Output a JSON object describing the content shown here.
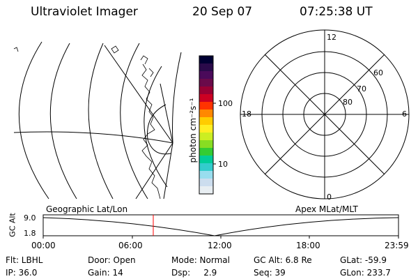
{
  "header": {
    "title": "Ultraviolet Imager",
    "date": "20 Sep 07",
    "time": "07:25:38 UT"
  },
  "colorbar": {
    "unit_label": "photon cm⁻²s⁻¹",
    "ticks": [
      "100",
      "10"
    ],
    "colors": [
      "#000033",
      "#2a0a4a",
      "#4a0a5a",
      "#6a0a4a",
      "#990033",
      "#cc0022",
      "#ff3300",
      "#ff8800",
      "#ffcc00",
      "#ffee22",
      "#ccee22",
      "#88dd22",
      "#33cc33",
      "#00cc99",
      "#33cccc",
      "#99ddee",
      "#ccddee",
      "#e8eef2"
    ]
  },
  "polar": {
    "mlt_labels": [
      "12",
      "18",
      "6",
      "0"
    ],
    "lat_labels": [
      "60",
      "70",
      "80"
    ]
  },
  "orbit": {
    "axis_label": "GC Alt",
    "y_ticks": [
      "9.0",
      "1.8"
    ],
    "left_title": "Geographic Lat/Lon",
    "right_title": "Apex MLat/MLT",
    "x_ticks": [
      "00:00",
      "06:00",
      "12:00",
      "18:00",
      "23:59"
    ],
    "marker_color": "#ff0000"
  },
  "status": {
    "row1": [
      "Flt: LBHL",
      "Door: Open",
      "Mode: Normal",
      "GC Alt: 6.8 Re",
      "GLat: -59.9"
    ],
    "row2": [
      "IP: 36.0",
      "Gain: 14",
      "Dsp:     2.9",
      "Seq: 39",
      "GLon: 233.7"
    ]
  }
}
